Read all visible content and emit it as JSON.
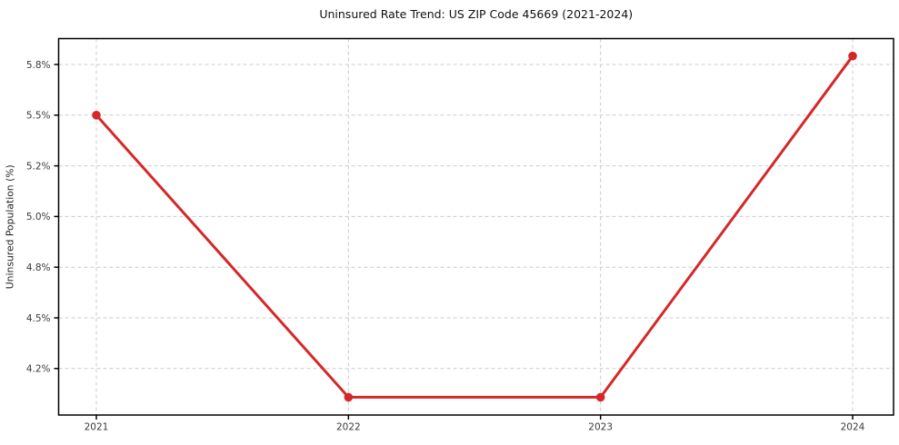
{
  "chart_data": {
    "type": "line",
    "title": "Uninsured Rate Trend: US ZIP Code 45669 (2021-2024)",
    "xlabel": "",
    "ylabel": "Uninsured Population (%)",
    "x": [
      2021,
      2022,
      2023,
      2024
    ],
    "xtick_labels": [
      "2021",
      "2022",
      "2023",
      "2024"
    ],
    "ytick_labels": [
      "5.8%",
      "5.5%",
      "5.2%",
      "5.0%",
      "4.8%",
      "4.5%",
      "4.2%"
    ],
    "series": [
      {
        "values": [
          5.5,
          4.03,
          4.03,
          5.85
        ],
        "color": "#d62728",
        "marker": "circle"
      }
    ],
    "grid": "dashed",
    "grid_color": "#cccccc",
    "axis_color": "#000000",
    "background": "#ffffff",
    "legend_position": "none"
  }
}
